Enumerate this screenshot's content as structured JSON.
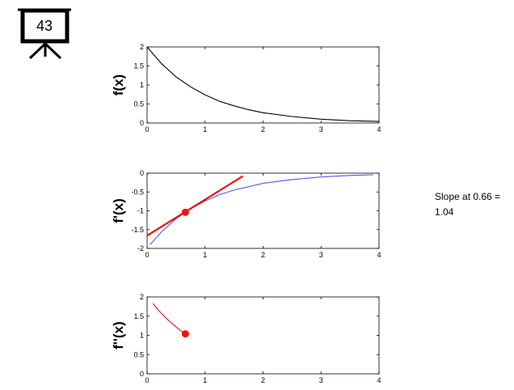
{
  "badge": {
    "number": "43",
    "icon": "presentation-board-icon"
  },
  "annotation": {
    "text": "Slope at 0.66 = 1.04"
  },
  "chart_data": [
    {
      "type": "line",
      "ylabel": "f(x)",
      "xlim": [
        0,
        4
      ],
      "ylim": [
        0,
        2
      ],
      "xticks": [
        "0",
        "1",
        "2",
        "3",
        "4"
      ],
      "yticks": [
        "0",
        "0.5",
        "1",
        "1.5",
        "2"
      ],
      "series": [
        {
          "color": "#000000",
          "x": [
            0,
            0.25,
            0.5,
            0.75,
            1,
            1.25,
            1.5,
            1.75,
            2,
            2.5,
            3,
            3.5,
            4
          ],
          "y": [
            2.0,
            1.56,
            1.21,
            0.95,
            0.74,
            0.57,
            0.45,
            0.35,
            0.27,
            0.17,
            0.1,
            0.06,
            0.04
          ]
        }
      ]
    },
    {
      "type": "line",
      "ylabel": "f'(x)",
      "xlim": [
        0,
        4
      ],
      "ylim": [
        -2,
        0
      ],
      "xticks": [
        "0",
        "1",
        "2",
        "3",
        "4"
      ],
      "yticks": [
        "-2",
        "-1.5",
        "-1",
        "-0.5",
        "0"
      ],
      "series": [
        {
          "color": "#5555ee",
          "x": [
            0.05,
            0.25,
            0.5,
            0.75,
            1,
            1.25,
            1.5,
            2,
            2.5,
            3,
            3.5,
            3.9
          ],
          "y": [
            -1.9,
            -1.56,
            -1.21,
            -0.95,
            -0.74,
            -0.57,
            -0.45,
            -0.27,
            -0.17,
            -0.1,
            -0.06,
            -0.04
          ]
        },
        {
          "color": "#ee1111",
          "x": [
            0,
            1.65
          ],
          "y": [
            -1.66,
            -0.08
          ]
        }
      ],
      "points": [
        {
          "x": 0.66,
          "y": -1.04,
          "color": "#ee1111"
        }
      ]
    },
    {
      "type": "line",
      "ylabel": "f''(x)",
      "xlim": [
        0,
        4
      ],
      "ylim": [
        0,
        2
      ],
      "xticks": [
        "0",
        "1",
        "2",
        "3",
        "4"
      ],
      "yticks": [
        "0",
        "0.5",
        "1",
        "1.5",
        "2"
      ],
      "series": [
        {
          "color": "#ee1111",
          "x": [
            0.1,
            0.2,
            0.3,
            0.4,
            0.5,
            0.6,
            0.66
          ],
          "y": [
            1.83,
            1.65,
            1.49,
            1.35,
            1.22,
            1.1,
            1.04
          ]
        }
      ],
      "points": [
        {
          "x": 0.66,
          "y": 1.04,
          "color": "#ee1111"
        }
      ]
    }
  ]
}
